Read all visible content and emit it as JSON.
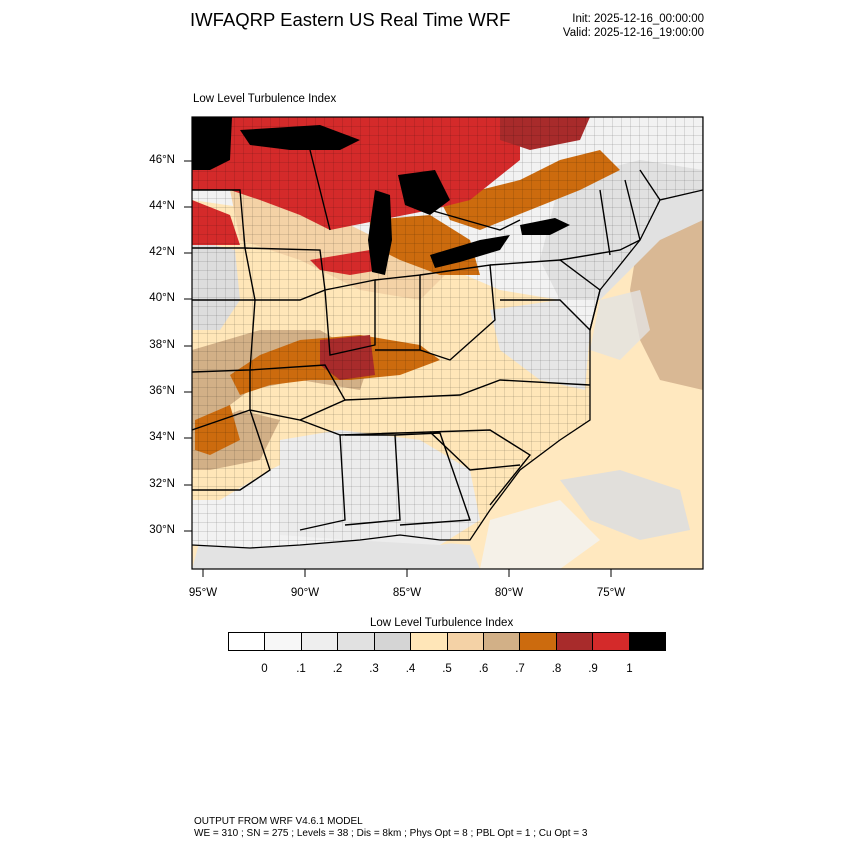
{
  "header": {
    "title": "IWFAQRP Eastern US Real Time WRF",
    "init": "Init: 2025-12-16_00:00:00",
    "valid": "Valid: 2025-12-16_19:00:00"
  },
  "panel": {
    "title": "Low Level Turbulence Index"
  },
  "axes": {
    "lat_labels": [
      "46°N",
      "44°N",
      "42°N",
      "40°N",
      "38°N",
      "36°N",
      "34°N",
      "32°N",
      "30°N"
    ],
    "lon_labels": [
      "95°W",
      "90°W",
      "85°W",
      "80°W",
      "75°W"
    ]
  },
  "legend": {
    "title": "Low Level Turbulence Index",
    "ticks": [
      "0",
      ".1",
      ".2",
      ".3",
      ".4",
      ".5",
      ".6",
      ".7",
      ".8",
      ".9",
      "1"
    ],
    "colors": [
      "#ffffff",
      "#f7f7f7",
      "#eeeeee",
      "#e1e1e1",
      "#d5d5d5",
      "#ffe6b8",
      "#f4d2a6",
      "#d2b087",
      "#cc6b0e",
      "#a82b2b",
      "#d42a2a",
      "#000000"
    ]
  },
  "footer": {
    "line1": "OUTPUT FROM WRF V4.6.1 MODEL",
    "line2": "WE = 310 ; SN = 275 ; Levels = 38 ; Dis = 8km ; Phys Opt = 8 ; PBL Opt = 1 ; Cu Opt = 3"
  }
}
